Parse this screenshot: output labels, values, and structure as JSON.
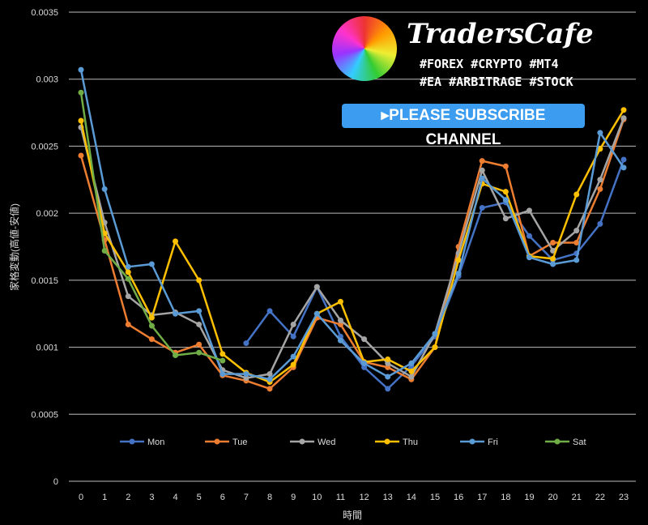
{
  "banner": {
    "brand": "TradersCafe",
    "tags1": "#FOREX #CRYPTO #MT4",
    "tags2": "#EA #ARBITRAGE #STOCK",
    "subscribe": "▸PLEASE SUBSCRIBE CHANNEL"
  },
  "chart_data": {
    "type": "line",
    "xlabel": "時間",
    "ylabel": "家格変動(高値-安値)",
    "ylim": [
      0,
      0.0035
    ],
    "grid": true,
    "legend": "bottom",
    "x": [
      0,
      1,
      2,
      3,
      4,
      5,
      6,
      7,
      8,
      9,
      10,
      11,
      12,
      13,
      14,
      15,
      16,
      17,
      18,
      19,
      20,
      21,
      22,
      23
    ],
    "yticks": [
      "0",
      "0.0005",
      "0.001",
      "0.0015",
      "0.002",
      "0.0025",
      "0.003",
      "0.0035"
    ],
    "series": [
      {
        "name": "Mon",
        "color": "#4472C4",
        "values": [
          null,
          null,
          null,
          null,
          null,
          null,
          null,
          0.00103,
          0.00127,
          0.00108,
          0.00145,
          0.00108,
          0.00085,
          0.00069,
          0.00086,
          0.00108,
          0.00153,
          0.00204,
          0.00208,
          0.00183,
          0.00165,
          0.0017,
          0.00192,
          0.0024
        ]
      },
      {
        "name": "Tue",
        "color": "#ED7D31",
        "values": [
          0.00243,
          0.0018,
          0.00117,
          0.00106,
          0.00096,
          0.00102,
          0.00079,
          0.00075,
          0.00069,
          0.00085,
          0.00122,
          0.00117,
          0.00089,
          0.00085,
          0.00076,
          0.001,
          0.00175,
          0.00239,
          0.00235,
          0.00168,
          0.00178,
          0.00178,
          0.00218,
          0.0027
        ]
      },
      {
        "name": "Wed",
        "color": "#A5A5A5",
        "values": [
          0.00264,
          0.00193,
          0.00138,
          0.00124,
          0.00126,
          0.00117,
          0.00083,
          0.00077,
          0.0008,
          0.00117,
          0.00145,
          0.0012,
          0.00106,
          0.00088,
          0.00078,
          0.0011,
          0.0017,
          0.00232,
          0.00196,
          0.00202,
          0.00172,
          0.00187,
          0.00225,
          0.00271
        ]
      },
      {
        "name": "Thu",
        "color": "#FFC000",
        "values": [
          0.00269,
          0.00185,
          0.00156,
          0.00122,
          0.00179,
          0.0015,
          0.00095,
          0.00081,
          0.00074,
          0.00087,
          0.00125,
          0.00134,
          0.00089,
          0.00091,
          0.00082,
          0.001,
          0.00165,
          0.00222,
          0.00216,
          0.00168,
          0.00166,
          0.00214,
          0.00248,
          0.00277
        ]
      },
      {
        "name": "Fri",
        "color": "#5B9BD5",
        "values": [
          0.00307,
          0.00218,
          0.0016,
          0.00162,
          0.00125,
          0.00127,
          0.0008,
          0.0008,
          0.00076,
          0.00093,
          0.00125,
          0.00105,
          0.00088,
          0.00078,
          0.00088,
          0.0011,
          0.00155,
          0.00226,
          0.0021,
          0.00167,
          0.00162,
          0.00165,
          0.0026,
          0.00234
        ]
      },
      {
        "name": "Sat",
        "color": "#70AD47",
        "values": [
          0.0029,
          0.00172,
          0.00151,
          0.00116,
          0.00094,
          0.00096,
          0.0009,
          null,
          null,
          null,
          null,
          null,
          null,
          null,
          null,
          null,
          null,
          null,
          null,
          null,
          null,
          null,
          null,
          null
        ]
      }
    ]
  }
}
